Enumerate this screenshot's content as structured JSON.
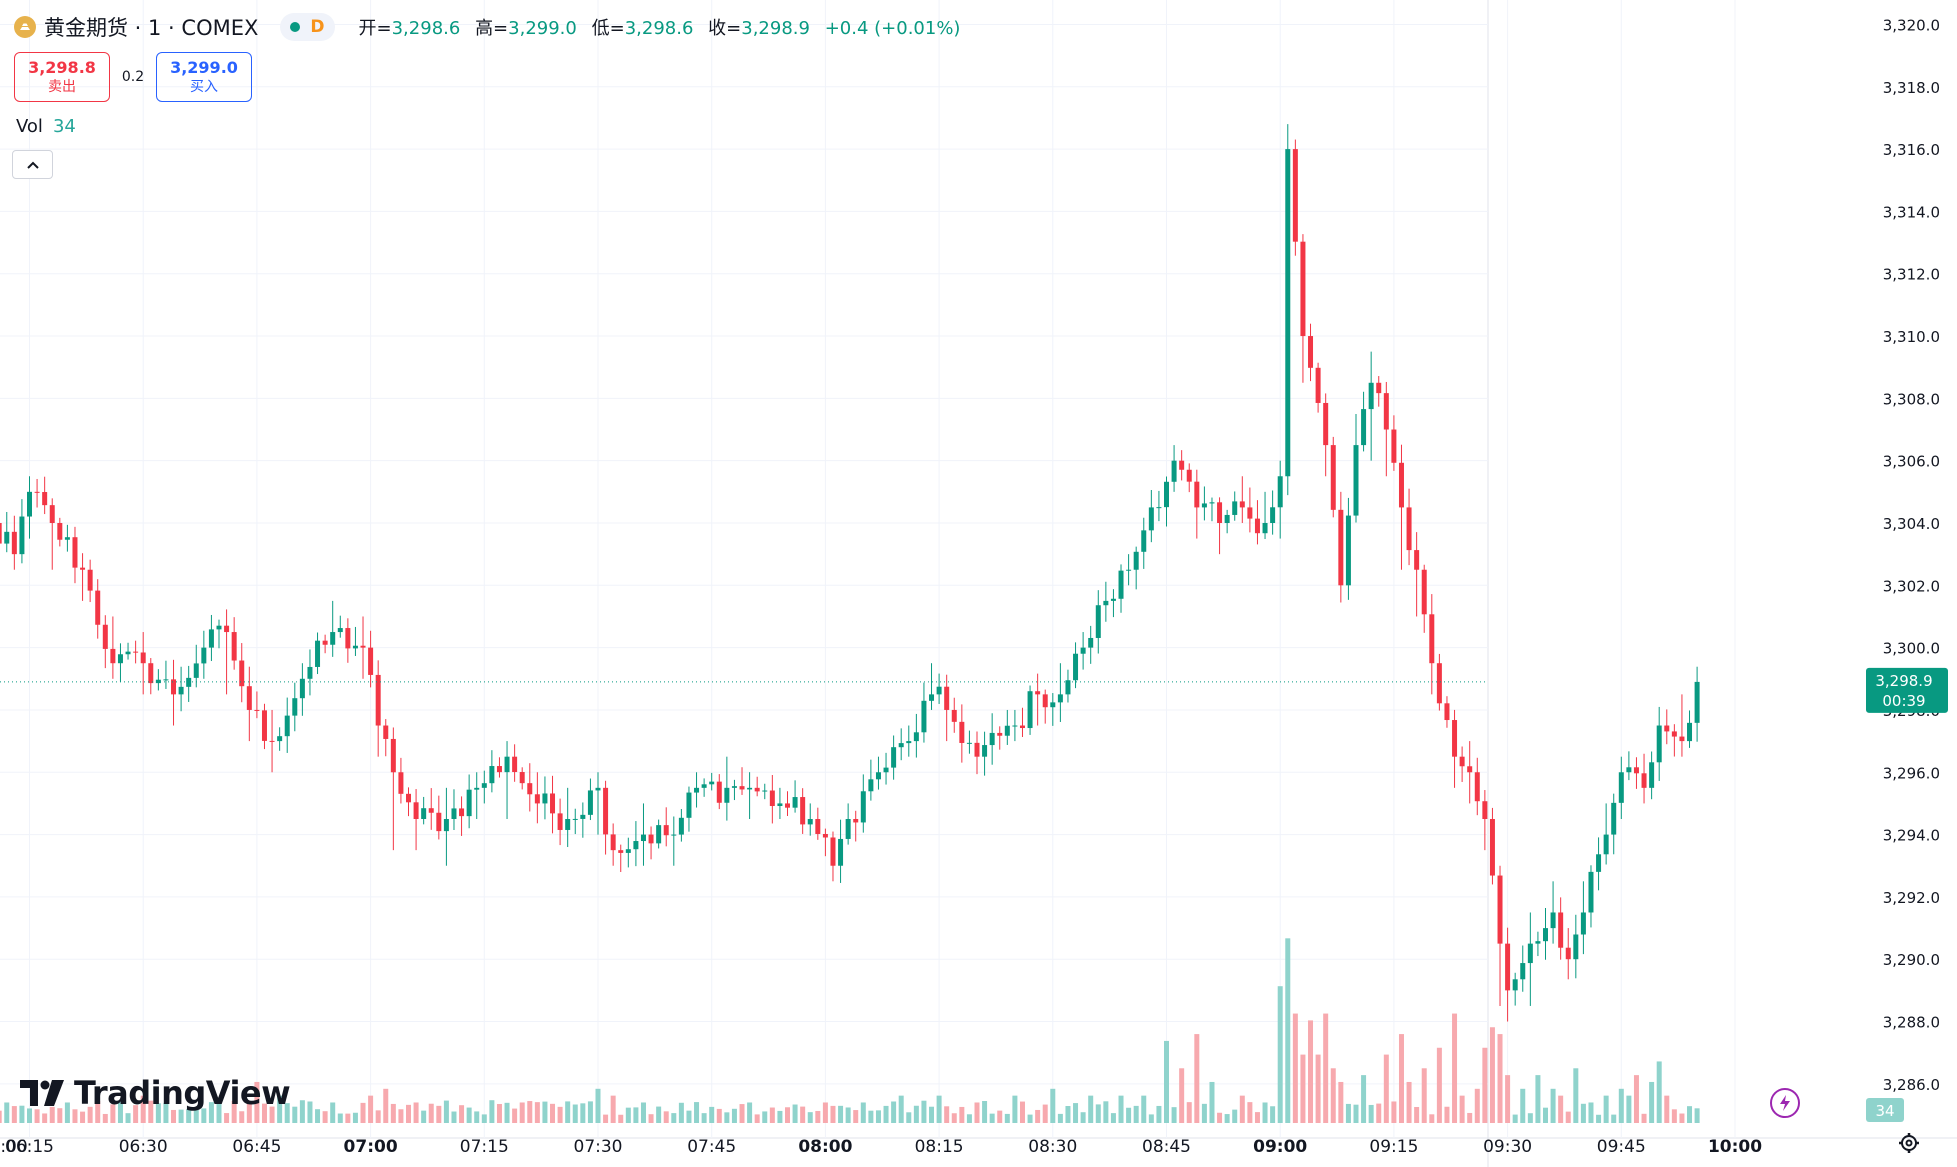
{
  "header": {
    "symbol": "黄金期货 · 1 · COMEX",
    "interval_badge": "D",
    "open_label": "开=",
    "open": "3,298.6",
    "high_label": "高=",
    "high": "3,299.0",
    "low_label": "低=",
    "low": "3,298.6",
    "close_label": "收=",
    "close": "3,298.9",
    "change": "+0.4 (+0.01%)"
  },
  "trade": {
    "sell_price": "3,298.8",
    "sell_label": "卖出",
    "spread": "0.2",
    "buy_price": "3,299.0",
    "buy_label": "买入"
  },
  "volume_legend": {
    "label": "Vol",
    "value": "34"
  },
  "branding": {
    "logo_text": "TradingView"
  },
  "price_badge": {
    "price": "3,298.9",
    "countdown": "00:39"
  },
  "volume_badge": "34",
  "colors": {
    "up": "#089981",
    "down": "#f23645",
    "vol_up": "#8fd3cc",
    "vol_down": "#f7a9ae",
    "accent": "#2962ff"
  },
  "chart_data": {
    "type": "candlestick",
    "timeframe": "1 minute",
    "y_axis_ticks": [
      "3,286.0",
      "3,288.0",
      "3,290.0",
      "3,292.0",
      "3,294.0",
      "3,296.0",
      "3,298.0",
      "3,300.0",
      "3,302.0",
      "3,304.0",
      "3,306.0",
      "3,308.0",
      "3,310.0",
      "3,312.0",
      "3,314.0",
      "3,316.0",
      "3,318.0",
      "3,320.0"
    ],
    "ylim": [
      3285.0,
      3320.4
    ],
    "x_axis_ticks": [
      ":00",
      "06:15",
      "06:30",
      "06:45",
      "07:00",
      "07:15",
      "07:30",
      "07:45",
      "08:00",
      "08:15",
      "08:30",
      "08:45",
      "09:00",
      "09:15",
      "09:30",
      "09:45",
      "10:00"
    ],
    "x_tick_minutes": [
      360,
      375,
      390,
      405,
      420,
      435,
      450,
      465,
      480,
      495,
      510,
      525,
      540,
      555,
      570,
      585,
      600
    ],
    "last_price": 3298.9,
    "anchors": [
      [
        360,
        3294.5,
        3297.5,
        3293.0
      ],
      [
        363,
        3297.0,
        3298.5,
        3296.5
      ],
      [
        366,
        3300.5,
        3303.5,
        3299.5
      ],
      [
        368,
        3306.0,
        3308.0,
        3305.0
      ],
      [
        370,
        3304.0,
        3305.5,
        3302.0
      ],
      [
        373,
        3303.0,
        3304.0,
        3302.5
      ],
      [
        375,
        3305.0,
        3305.5,
        3303.5
      ],
      [
        378,
        3304.0,
        3304.5,
        3302.5
      ],
      [
        382,
        3302.5,
        3303.0,
        3301.5
      ],
      [
        386,
        3299.5,
        3301.0,
        3299.0
      ],
      [
        390,
        3299.5,
        3300.5,
        3298.5
      ],
      [
        394,
        3298.5,
        3299.5,
        3297.5
      ],
      [
        398,
        3300.0,
        3300.5,
        3299.0
      ],
      [
        401,
        3300.5,
        3301.0,
        3298.5
      ],
      [
        404,
        3298.0,
        3299.0,
        3297.0
      ],
      [
        407,
        3297.0,
        3298.0,
        3296.0
      ],
      [
        411,
        3299.0,
        3299.5,
        3298.5
      ],
      [
        415,
        3300.5,
        3301.5,
        3300.0
      ],
      [
        419,
        3300.0,
        3301.0,
        3299.0
      ],
      [
        421,
        3297.5,
        3299.0,
        3296.5
      ],
      [
        423,
        3296.0,
        3296.5,
        3293.5
      ],
      [
        426,
        3294.5,
        3295.0,
        3293.5
      ],
      [
        430,
        3294.5,
        3295.5,
        3293.0
      ],
      [
        434,
        3295.5,
        3296.0,
        3294.5
      ],
      [
        438,
        3296.5,
        3297.0,
        3294.5
      ],
      [
        442,
        3295.0,
        3296.0,
        3294.5
      ],
      [
        446,
        3294.5,
        3295.5,
        3294.0
      ],
      [
        450,
        3295.5,
        3296.0,
        3294.0
      ],
      [
        452,
        3293.5,
        3294.0,
        3293.0
      ],
      [
        456,
        3294.0,
        3295.0,
        3293.0
      ],
      [
        460,
        3294.0,
        3294.5,
        3293.0
      ],
      [
        463,
        3295.5,
        3296.0,
        3295.0
      ],
      [
        467,
        3295.5,
        3296.5,
        3295.0
      ],
      [
        470,
        3295.5,
        3296.0,
        3294.5
      ],
      [
        474,
        3295.0,
        3295.5,
        3294.5
      ],
      [
        478,
        3294.5,
        3295.0,
        3294.0
      ],
      [
        481,
        3293.0,
        3293.5,
        3292.5
      ],
      [
        483,
        3294.5,
        3295.0,
        3294.0
      ],
      [
        487,
        3296.0,
        3296.5,
        3295.5
      ],
      [
        491,
        3297.0,
        3297.5,
        3296.5
      ],
      [
        494,
        3298.5,
        3299.5,
        3298.0
      ],
      [
        496,
        3298.0,
        3298.5,
        3297.0
      ],
      [
        500,
        3296.5,
        3297.0,
        3296.0
      ],
      [
        505,
        3297.5,
        3298.0,
        3297.0
      ],
      [
        508,
        3298.5,
        3299.0,
        3297.5
      ],
      [
        511,
        3298.5,
        3299.5,
        3298.0
      ],
      [
        514,
        3300.0,
        3300.5,
        3299.5
      ],
      [
        517,
        3301.5,
        3302.0,
        3301.0
      ],
      [
        520,
        3302.5,
        3303.0,
        3302.0
      ],
      [
        523,
        3304.5,
        3305.0,
        3304.0
      ],
      [
        526,
        3306.0,
        3306.5,
        3305.0
      ],
      [
        529,
        3304.5,
        3305.5,
        3303.5
      ],
      [
        532,
        3304.0,
        3304.5,
        3303.0
      ],
      [
        535,
        3304.5,
        3305.5,
        3304.0
      ],
      [
        538,
        3304.0,
        3305.0,
        3303.5
      ],
      [
        540,
        3305.5,
        3306.0,
        3303.5
      ],
      [
        541,
        3316.0,
        3316.8,
        3305.5
      ],
      [
        543,
        3310.0,
        3312.0,
        3308.5
      ],
      [
        546,
        3306.5,
        3307.5,
        3305.5
      ],
      [
        548,
        3302.0,
        3305.0,
        3301.5
      ],
      [
        550,
        3306.5,
        3307.5,
        3305.0
      ],
      [
        552,
        3308.5,
        3309.5,
        3306.0
      ],
      [
        554,
        3307.0,
        3308.0,
        3305.5
      ],
      [
        556,
        3304.5,
        3305.0,
        3302.5
      ],
      [
        558,
        3302.5,
        3303.0,
        3301.0
      ],
      [
        560,
        3299.5,
        3300.0,
        3298.5
      ],
      [
        563,
        3296.5,
        3297.5,
        3295.5
      ],
      [
        565,
        3296.0,
        3297.0,
        3295.0
      ],
      [
        567,
        3294.5,
        3295.0,
        3293.5
      ],
      [
        569,
        3290.5,
        3293.0,
        3288.5
      ],
      [
        570,
        3289.0,
        3290.0,
        3288.0
      ],
      [
        573,
        3290.5,
        3291.5,
        3288.5
      ],
      [
        576,
        3291.5,
        3292.5,
        3290.5
      ],
      [
        578,
        3290.0,
        3291.0,
        3289.5
      ],
      [
        580,
        3291.5,
        3292.5,
        3291.0
      ],
      [
        583,
        3294.0,
        3295.0,
        3293.5
      ],
      [
        585,
        3296.0,
        3296.5,
        3294.5
      ],
      [
        588,
        3295.5,
        3296.5,
        3295.0
      ],
      [
        590,
        3297.5,
        3298.0,
        3296.5
      ],
      [
        593,
        3297.0,
        3298.5,
        3296.5
      ],
      [
        595,
        3298.9,
        3299.0,
        3298.6
      ]
    ],
    "volume_anchors": [
      [
        360,
        4
      ],
      [
        363,
        3
      ],
      [
        366,
        6
      ],
      [
        368,
        21
      ],
      [
        369,
        14
      ],
      [
        370,
        8
      ],
      [
        372,
        3
      ],
      [
        376,
        2
      ],
      [
        380,
        3
      ],
      [
        390,
        4
      ],
      [
        400,
        3
      ],
      [
        405,
        6
      ],
      [
        408,
        4
      ],
      [
        415,
        3
      ],
      [
        420,
        4
      ],
      [
        422,
        5
      ],
      [
        426,
        3
      ],
      [
        440,
        3
      ],
      [
        450,
        5
      ],
      [
        452,
        4
      ],
      [
        456,
        3
      ],
      [
        470,
        3
      ],
      [
        480,
        3
      ],
      [
        485,
        3
      ],
      [
        490,
        4
      ],
      [
        495,
        4
      ],
      [
        500,
        3
      ],
      [
        505,
        4
      ],
      [
        510,
        5
      ],
      [
        515,
        4
      ],
      [
        519,
        4
      ],
      [
        522,
        4
      ],
      [
        525,
        12
      ],
      [
        527,
        8
      ],
      [
        529,
        13
      ],
      [
        531,
        6
      ],
      [
        535,
        4
      ],
      [
        538,
        3
      ],
      [
        540,
        20
      ],
      [
        541,
        27
      ],
      [
        542,
        16
      ],
      [
        543,
        10
      ],
      [
        544,
        15
      ],
      [
        545,
        10
      ],
      [
        546,
        16
      ],
      [
        547,
        8
      ],
      [
        548,
        6
      ],
      [
        551,
        7
      ],
      [
        554,
        10
      ],
      [
        556,
        13
      ],
      [
        557,
        6
      ],
      [
        559,
        8
      ],
      [
        561,
        11
      ],
      [
        563,
        16
      ],
      [
        564,
        4
      ],
      [
        566,
        5
      ],
      [
        567,
        11
      ],
      [
        568,
        14
      ],
      [
        569,
        13
      ],
      [
        570,
        7
      ],
      [
        572,
        5
      ],
      [
        574,
        7
      ],
      [
        576,
        5
      ],
      [
        577,
        4
      ],
      [
        579,
        8
      ],
      [
        581,
        3
      ],
      [
        583,
        4
      ],
      [
        585,
        5
      ],
      [
        586,
        4
      ],
      [
        587,
        7
      ],
      [
        589,
        6
      ],
      [
        590,
        9
      ],
      [
        591,
        4
      ],
      [
        592,
        2
      ]
    ],
    "volume_max_display": 30
  }
}
